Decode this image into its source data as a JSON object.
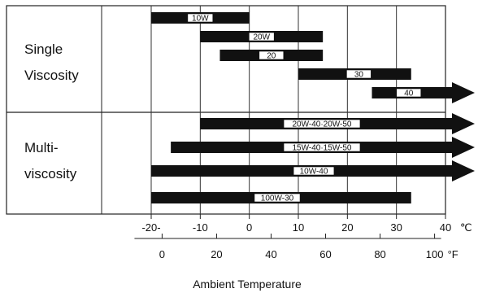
{
  "chart_data": {
    "type": "bar",
    "title": "",
    "xlabel": "Ambient Temperature",
    "units": {
      "celsius": "℃",
      "fahrenheit": "°F"
    },
    "xlim_celsius": [
      -20,
      40
    ],
    "grid": true,
    "groups": [
      {
        "label_lines": [
          "Single",
          "Viscosity"
        ],
        "bars": [
          {
            "grade": "10W",
            "from_c": -20,
            "to_c": 0,
            "arrow": false
          },
          {
            "grade": "20W",
            "from_c": -10,
            "to_c": 15,
            "arrow": false
          },
          {
            "grade": "20",
            "from_c": -6,
            "to_c": 15,
            "arrow": false
          },
          {
            "grade": "30",
            "from_c": 10,
            "to_c": 33,
            "arrow": false
          },
          {
            "grade": "40",
            "from_c": 25,
            "to_c": 40,
            "arrow": true
          }
        ]
      },
      {
        "label_lines": [
          "Multi-",
          "viscosity"
        ],
        "bars": [
          {
            "grade": "20W-40·20W-50",
            "from_c": -10,
            "to_c": 40,
            "arrow": true
          },
          {
            "grade": "15W-40·15W-50",
            "from_c": -16,
            "to_c": 40,
            "arrow": true
          },
          {
            "grade": "10W-40",
            "from_c": -20,
            "to_c": 40,
            "arrow": true
          },
          {
            "grade": "100W-30",
            "from_c": -20,
            "to_c": 33,
            "arrow": false
          }
        ]
      }
    ],
    "celsius_ticks": [
      {
        "value": -20,
        "label": "-20-"
      },
      {
        "value": -10,
        "label": "-10"
      },
      {
        "value": 0,
        "label": "0"
      },
      {
        "value": 10,
        "label": "10"
      },
      {
        "value": 20,
        "label": "20"
      },
      {
        "value": 30,
        "label": "30"
      },
      {
        "value": 40,
        "label": "40"
      }
    ],
    "fahrenheit_ticks": [
      {
        "value": 0,
        "label": "0"
      },
      {
        "value": 20,
        "label": "20"
      },
      {
        "value": 40,
        "label": "40"
      },
      {
        "value": 60,
        "label": "60"
      },
      {
        "value": 80,
        "label": "80"
      },
      {
        "value": 100,
        "label": "100"
      }
    ],
    "colors": {
      "bar": "#111111",
      "label_box": "#ffffff",
      "grid": "#333333"
    }
  }
}
